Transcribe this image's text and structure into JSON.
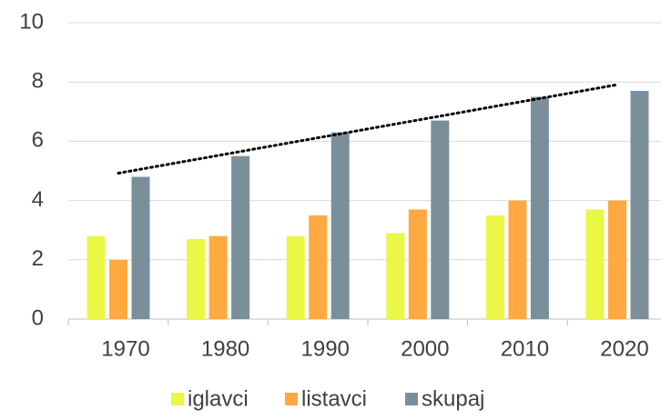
{
  "chart_data": {
    "type": "bar",
    "categories": [
      "1970",
      "1980",
      "1990",
      "2000",
      "2010",
      "2020"
    ],
    "series": [
      {
        "name": "iglavci",
        "color": "#eaf745",
        "values": [
          2.8,
          2.7,
          2.8,
          2.9,
          3.5,
          3.7
        ]
      },
      {
        "name": "listavci",
        "color": "#ffa940",
        "values": [
          2.0,
          2.8,
          3.5,
          3.7,
          4.0,
          4.0
        ]
      },
      {
        "name": "skupaj",
        "color": "#7b8f9b",
        "values": [
          4.8,
          5.5,
          6.3,
          6.7,
          7.5,
          7.7
        ],
        "trendline": true
      }
    ],
    "ylim": [
      0,
      10
    ],
    "yticks": [
      0,
      2,
      4,
      6,
      8,
      10
    ],
    "grid": true,
    "legend": "bottom"
  }
}
